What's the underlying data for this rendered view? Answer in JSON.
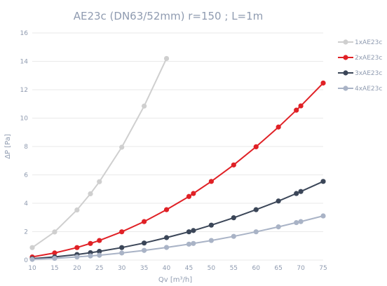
{
  "chart_data": {
    "type": "line",
    "title": "AE23c (DN63/52mm) r=150 ; L=1m",
    "xlabel": "Qv [m³/h]",
    "ylabel": "ΔP [Pa]",
    "xlim": [
      10,
      75
    ],
    "ylim": [
      0,
      16
    ],
    "xticks": [
      "10",
      "15",
      "20",
      "25",
      "30",
      "35",
      "40",
      "45",
      "50",
      "55",
      "60",
      "65",
      "70",
      "75"
    ],
    "yticks": [
      "0",
      "2",
      "4",
      "6",
      "8",
      "10",
      "12",
      "14",
      "16"
    ],
    "grid": "horizontal",
    "legend_position": "right",
    "series": [
      {
        "name": "1xAE23c",
        "color": "#cfcfcf",
        "points": [
          [
            10,
            0.88
          ],
          [
            15,
            1.98
          ],
          [
            20,
            3.53
          ],
          [
            23,
            4.67
          ],
          [
            25,
            5.52
          ],
          [
            30,
            7.95
          ],
          [
            35,
            10.85
          ],
          [
            40,
            14.2
          ]
        ]
      },
      {
        "name": "2xAE23c",
        "color": "#e02126",
        "points": [
          [
            10,
            0.22
          ],
          [
            15,
            0.5
          ],
          [
            20,
            0.88
          ],
          [
            23,
            1.17
          ],
          [
            25,
            1.38
          ],
          [
            30,
            1.99
          ],
          [
            35,
            2.71
          ],
          [
            40,
            3.55
          ],
          [
            45,
            4.48
          ],
          [
            46,
            4.69
          ],
          [
            50,
            5.54
          ],
          [
            55,
            6.7
          ],
          [
            60,
            7.98
          ],
          [
            65,
            9.37
          ],
          [
            69,
            10.56
          ],
          [
            70,
            10.86
          ],
          [
            75,
            12.47
          ]
        ]
      },
      {
        "name": "3xAE23c",
        "color": "#3b4658",
        "points": [
          [
            10,
            0.1
          ],
          [
            15,
            0.22
          ],
          [
            20,
            0.39
          ],
          [
            23,
            0.52
          ],
          [
            25,
            0.61
          ],
          [
            30,
            0.88
          ],
          [
            35,
            1.2
          ],
          [
            40,
            1.58
          ],
          [
            45,
            1.99
          ],
          [
            46,
            2.08
          ],
          [
            50,
            2.46
          ],
          [
            55,
            2.98
          ],
          [
            60,
            3.55
          ],
          [
            65,
            4.16
          ],
          [
            69,
            4.69
          ],
          [
            70,
            4.83
          ],
          [
            75,
            5.54
          ]
        ]
      },
      {
        "name": "4xAE23c",
        "color": "#a9b3c6",
        "points": [
          [
            10,
            0.05
          ],
          [
            15,
            0.12
          ],
          [
            20,
            0.22
          ],
          [
            23,
            0.29
          ],
          [
            25,
            0.34
          ],
          [
            30,
            0.5
          ],
          [
            35,
            0.68
          ],
          [
            40,
            0.89
          ],
          [
            45,
            1.12
          ],
          [
            46,
            1.17
          ],
          [
            50,
            1.38
          ],
          [
            55,
            1.67
          ],
          [
            60,
            1.99
          ],
          [
            65,
            2.34
          ],
          [
            69,
            2.64
          ],
          [
            70,
            2.71
          ],
          [
            75,
            3.11
          ]
        ]
      }
    ]
  }
}
